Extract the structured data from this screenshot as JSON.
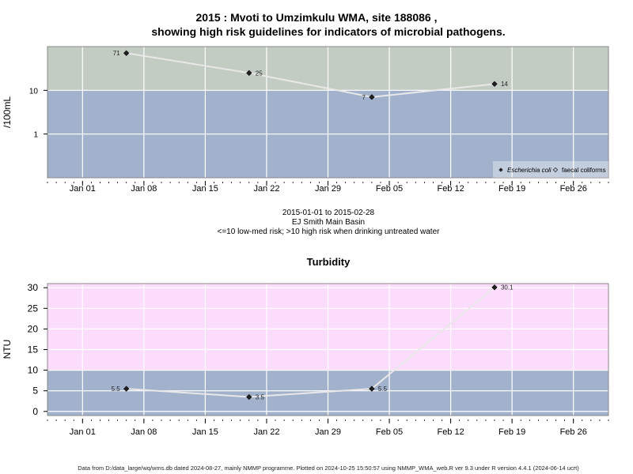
{
  "header": {
    "title_line1": "2015 : Mvoti to Umzimkulu WMA, site 188086 ,",
    "title_line2": "showing high risk guidelines for indicators of microbial pathogens."
  },
  "middle": {
    "date_range": "2015-01-01 to 2015-02-28",
    "location": "EJ Smith Main Basin",
    "risk_note": "<=10 low-med risk; >10 high risk when drinking untreated water"
  },
  "footer": {
    "text": "Data from D:/data_large/wq/wms.db dated 2024-08-27, mainly NMMP programme. Plotted on 2024-10-25 15:50:57 using NMMP_WMA_web.R ver 9.3 under R version 4.4.1 (2024-06-14 ucrt)"
  },
  "colors": {
    "high_risk_micro": "#c3ccc2",
    "low_risk": "#a2b2cc",
    "high_risk_turb": "#fcdcfc",
    "line": "#e8e8e8",
    "grid": "#ffffff"
  },
  "chart_data": [
    {
      "type": "line",
      "title": "",
      "ylabel": "/100mL",
      "yscale": "log",
      "ylim": [
        0.1,
        100
      ],
      "xlim": [
        "2014-12-28",
        "2015-03-02"
      ],
      "yticks": [
        1,
        10
      ],
      "ytick_labels": [
        "1",
        "10"
      ],
      "xticks": [
        "2015-01-01",
        "2015-01-08",
        "2015-01-15",
        "2015-01-22",
        "2015-01-29",
        "2015-02-05",
        "2015-02-12",
        "2015-02-19",
        "2015-02-26"
      ],
      "xtick_labels": [
        "Jan 01",
        "Jan 08",
        "Jan 15",
        "Jan 22",
        "Jan 29",
        "Feb 05",
        "Feb 12",
        "Feb 19",
        "Feb 26"
      ],
      "threshold": 10,
      "grid": true,
      "legend_position": "bottom-right",
      "legend": [
        "Escherichia coli",
        "faecal coliforms"
      ],
      "series": [
        {
          "name": "Escherichia coli",
          "x": [
            "2015-01-06",
            "2015-01-20",
            "2015-02-03",
            "2015-02-17"
          ],
          "y": [
            71,
            25,
            7,
            14
          ],
          "labels": [
            "71",
            "25",
            "7",
            "14"
          ]
        }
      ]
    },
    {
      "type": "line",
      "title": "Turbidity",
      "ylabel": "NTU",
      "ylim": [
        -1,
        31
      ],
      "xlim": [
        "2014-12-28",
        "2015-03-02"
      ],
      "yticks": [
        0,
        5,
        10,
        15,
        20,
        25,
        30
      ],
      "ytick_labels": [
        "0",
        "5",
        "10",
        "15",
        "20",
        "25",
        "30"
      ],
      "xticks": [
        "2015-01-01",
        "2015-01-08",
        "2015-01-15",
        "2015-01-22",
        "2015-01-29",
        "2015-02-05",
        "2015-02-12",
        "2015-02-19",
        "2015-02-26"
      ],
      "xtick_labels": [
        "Jan 01",
        "Jan 08",
        "Jan 15",
        "Jan 22",
        "Jan 29",
        "Feb 05",
        "Feb 12",
        "Feb 19",
        "Feb 26"
      ],
      "threshold": 10,
      "grid": true,
      "series": [
        {
          "x": [
            "2015-01-06",
            "2015-01-20",
            "2015-02-03",
            "2015-02-17"
          ],
          "y": [
            5.5,
            3.5,
            5.5,
            30.1
          ],
          "labels": [
            "5.5",
            "3.5",
            "5.5",
            "30.1"
          ]
        }
      ]
    }
  ]
}
